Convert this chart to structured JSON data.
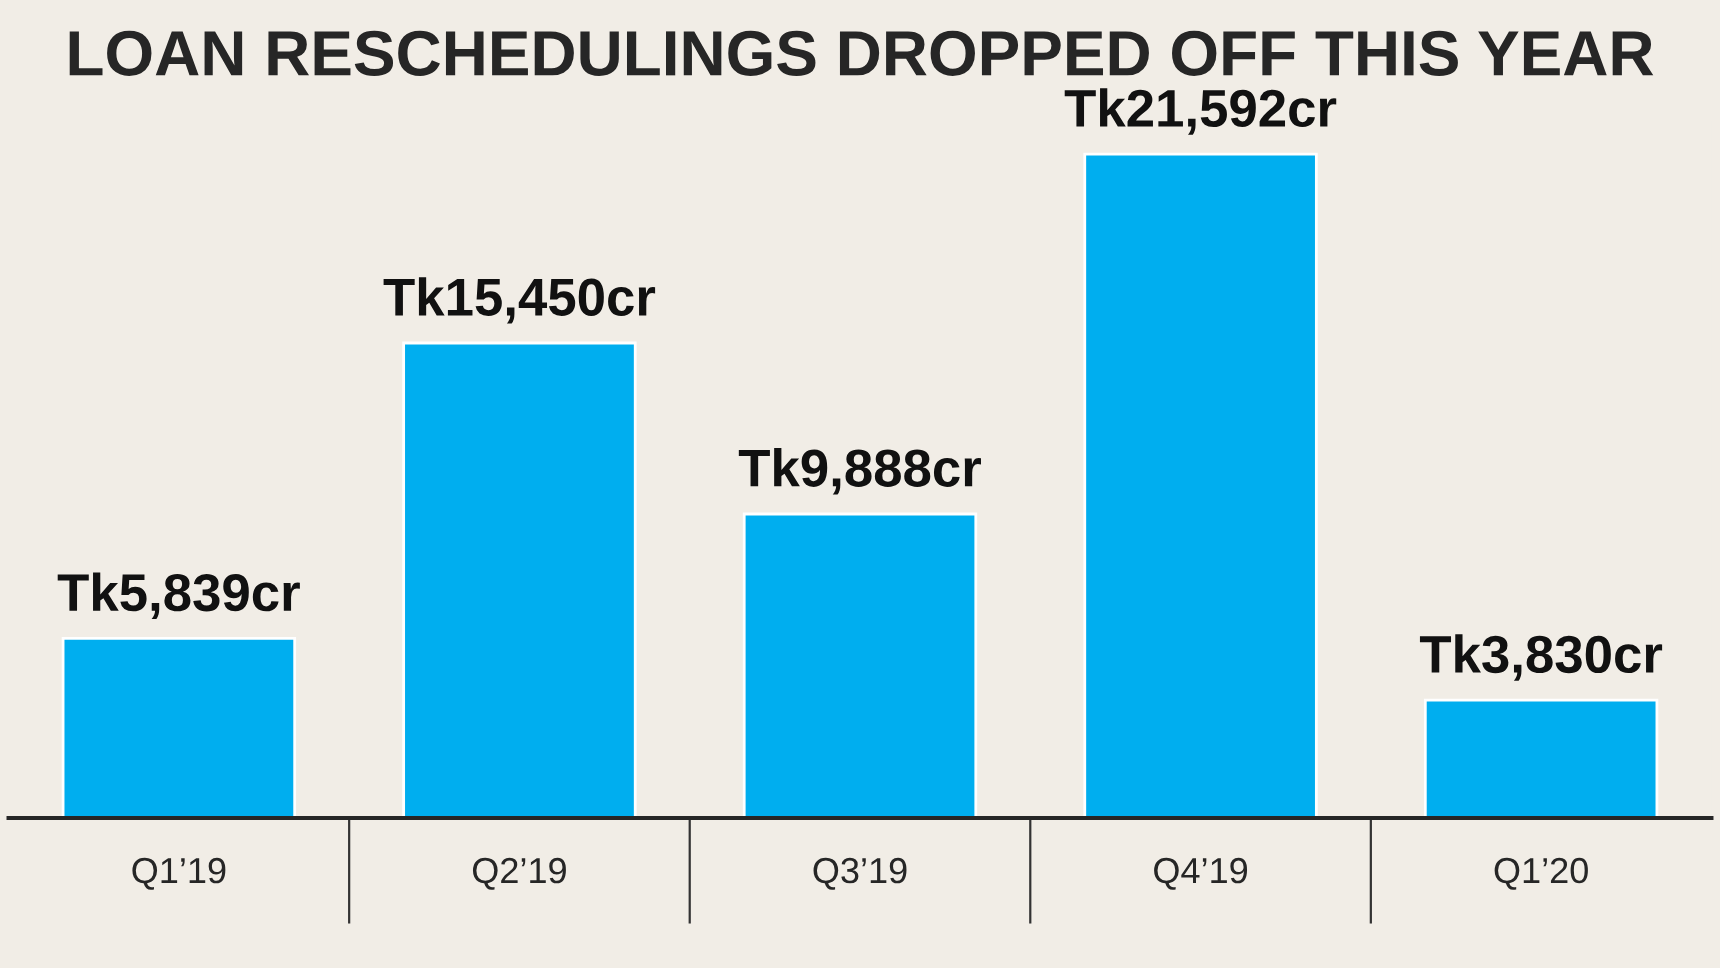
{
  "chart_data": {
    "type": "bar",
    "title": "LOAN RESCHEDULINGS DROPPED OFF THIS YEAR",
    "categories": [
      "Q1’19",
      "Q2’19",
      "Q3’19",
      "Q4’19",
      "Q1’20"
    ],
    "values": [
      5839,
      15450,
      9888,
      21592,
      3830
    ],
    "value_labels": [
      "Tk5,839cr",
      "Tk15,450cr",
      "Tk9,888cr",
      "Tk21,592cr",
      "Tk3,830cr"
    ],
    "color": "#00aeef",
    "grid": false,
    "legend": false
  }
}
